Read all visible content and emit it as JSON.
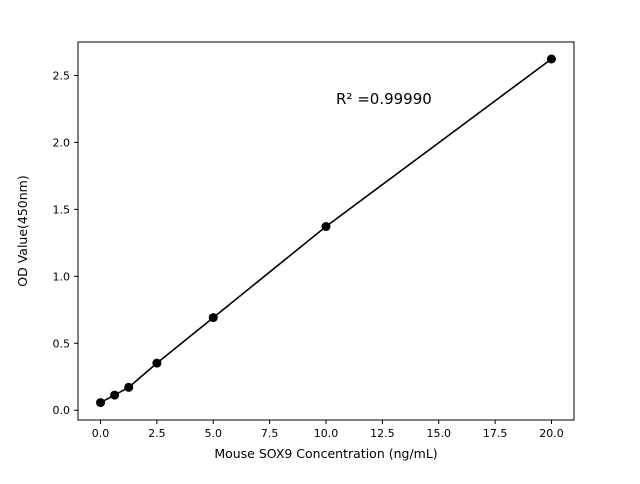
{
  "chart_data": {
    "type": "scatter",
    "x": [
      0,
      0.625,
      1.25,
      2.5,
      5,
      10,
      20
    ],
    "y": [
      0.057,
      0.113,
      0.171,
      0.352,
      0.692,
      1.372,
      2.623
    ],
    "title": "",
    "xlabel": "Mouse SOX9 Concentration (ng/mL)",
    "ylabel": "OD Value(450nm)",
    "annotation": "R² =0.99990",
    "xlim": [
      -1,
      21
    ],
    "ylim": [
      -0.073,
      2.75
    ],
    "xticks": [
      0.0,
      2.5,
      5.0,
      7.5,
      10.0,
      12.5,
      15.0,
      17.5,
      20.0
    ],
    "xtick_labels": [
      "0.0",
      "2.5",
      "5.0",
      "7.5",
      "10.0",
      "12.5",
      "15.0",
      "17.5",
      "20.0"
    ],
    "yticks": [
      0.0,
      0.5,
      1.0,
      1.5,
      2.0,
      2.5
    ],
    "ytick_labels": [
      "0.0",
      "0.5",
      "1.0",
      "1.5",
      "2.0",
      "2.5"
    ],
    "line": true,
    "grid": false,
    "legend": "none",
    "marker_color": "#000000",
    "line_color": "#000000",
    "background": "#ffffff"
  }
}
